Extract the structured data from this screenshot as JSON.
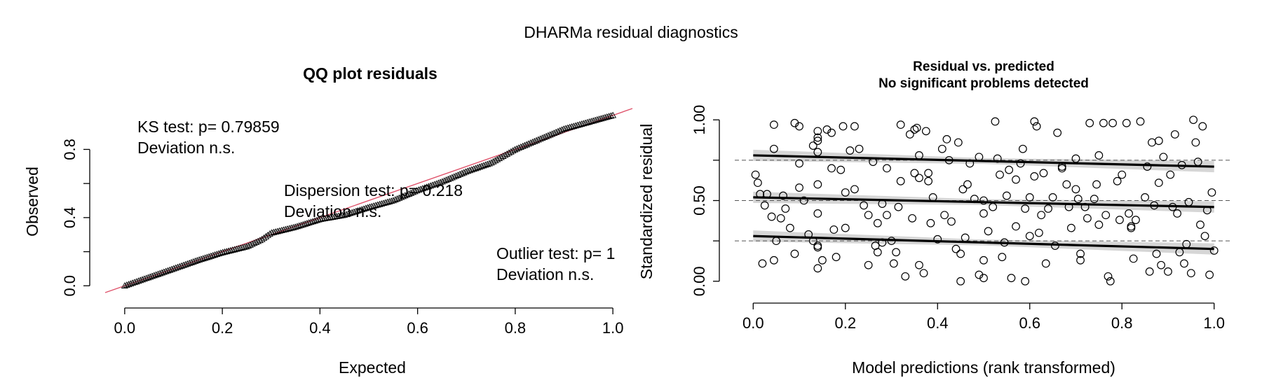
{
  "figure": {
    "title": "DHARMa residual diagnostics"
  },
  "chart_data": [
    {
      "type": "scatter",
      "title": "QQ plot residuals",
      "xlabel": "Expected",
      "ylabel": "Observed",
      "xlim": [
        -0.04,
        1.04
      ],
      "ylim": [
        -0.04,
        1.04
      ],
      "x_ticks": [
        0.0,
        0.2,
        0.4,
        0.6,
        0.8,
        1.0
      ],
      "x_tick_labels": [
        "0.0",
        "0.2",
        "0.4",
        "0.6",
        "0.8",
        "1.0"
      ],
      "y_ticks": [
        0.0,
        0.4,
        0.8
      ],
      "y_tick_labels": [
        "0.0",
        "0.4",
        "0.8"
      ],
      "y_minor_ticks": [
        0.2,
        0.6
      ],
      "grid": false,
      "reference_line": {
        "from": [
          -0.04,
          -0.04
        ],
        "to": [
          1.04,
          1.04
        ],
        "color": "#DF536B"
      },
      "marker": "triangle",
      "qq_curve": {
        "n_points": 250,
        "x": [
          0.0,
          0.05,
          0.1,
          0.15,
          0.2,
          0.25,
          0.28,
          0.3,
          0.35,
          0.4,
          0.45,
          0.5,
          0.55,
          0.6,
          0.65,
          0.7,
          0.75,
          0.8,
          0.85,
          0.9,
          0.95,
          1.0
        ],
        "y": [
          0.0,
          0.05,
          0.1,
          0.15,
          0.195,
          0.23,
          0.27,
          0.31,
          0.345,
          0.39,
          0.415,
          0.46,
          0.5,
          0.56,
          0.61,
          0.67,
          0.72,
          0.8,
          0.86,
          0.92,
          0.96,
          1.0
        ]
      },
      "annotations": [
        {
          "lines": [
            "KS test: p= 0.79859",
            "Deviation  n.s."
          ]
        },
        {
          "lines": [
            "Dispersion test: p= 0.218",
            "Deviation  n.s."
          ]
        },
        {
          "lines": [
            "Outlier test: p= 1",
            "Deviation  n.s."
          ]
        }
      ]
    },
    {
      "type": "scatter",
      "title": "Residual vs. predicted",
      "subtitle": "No significant problems detected",
      "xlabel": "Model predictions (rank transformed)",
      "ylabel": "Standardized residual",
      "xlim": [
        -0.04,
        1.04
      ],
      "ylim": [
        -0.04,
        1.04
      ],
      "x_ticks": [
        0.0,
        0.2,
        0.4,
        0.6,
        0.8,
        1.0
      ],
      "x_tick_labels": [
        "0.0",
        "0.2",
        "0.4",
        "0.6",
        "0.8",
        "1.0"
      ],
      "y_ticks": [
        0.0,
        0.5,
        1.0
      ],
      "y_tick_labels": [
        "0.00",
        "0.50",
        "1.00"
      ],
      "y_minor_ticks": [
        0.25,
        0.75
      ],
      "reference_lines": [
        0.25,
        0.5,
        0.75
      ],
      "marker": "open-circle",
      "quantile_fits": [
        {
          "quantile": 0.25,
          "y_at_0": 0.28,
          "y_at_1": 0.2
        },
        {
          "quantile": 0.5,
          "y_at_0": 0.52,
          "y_at_1": 0.46
        },
        {
          "quantile": 0.75,
          "y_at_0": 0.78,
          "y_at_1": 0.71
        }
      ],
      "points": [
        [
          0.005,
          0.66
        ],
        [
          0.01,
          0.61
        ],
        [
          0.015,
          0.54
        ],
        [
          0.02,
          0.11
        ],
        [
          0.025,
          0.47
        ],
        [
          0.03,
          0.54
        ],
        [
          0.04,
          0.4
        ],
        [
          0.045,
          0.97
        ],
        [
          0.045,
          0.82
        ],
        [
          0.045,
          0.13
        ],
        [
          0.05,
          0.25
        ],
        [
          0.06,
          0.39
        ],
        [
          0.065,
          0.53
        ],
        [
          0.07,
          0.45
        ],
        [
          0.08,
          0.33
        ],
        [
          0.09,
          0.17
        ],
        [
          0.09,
          0.98
        ],
        [
          0.1,
          0.96
        ],
        [
          0.1,
          0.73
        ],
        [
          0.1,
          0.58
        ],
        [
          0.11,
          0.5
        ],
        [
          0.12,
          0.29
        ],
        [
          0.13,
          0.84
        ],
        [
          0.13,
          0.25
        ],
        [
          0.14,
          0.93
        ],
        [
          0.14,
          0.89
        ],
        [
          0.14,
          0.87
        ],
        [
          0.14,
          0.8
        ],
        [
          0.14,
          0.6
        ],
        [
          0.14,
          0.42
        ],
        [
          0.14,
          0.22
        ],
        [
          0.14,
          0.21
        ],
        [
          0.14,
          0.08
        ],
        [
          0.15,
          0.13
        ],
        [
          0.16,
          0.94
        ],
        [
          0.17,
          0.92
        ],
        [
          0.17,
          0.7
        ],
        [
          0.175,
          0.32
        ],
        [
          0.18,
          0.15
        ],
        [
          0.19,
          0.69
        ],
        [
          0.195,
          0.96
        ],
        [
          0.2,
          0.55
        ],
        [
          0.2,
          0.33
        ],
        [
          0.21,
          0.81
        ],
        [
          0.22,
          0.96
        ],
        [
          0.22,
          0.57
        ],
        [
          0.23,
          0.82
        ],
        [
          0.24,
          0.47
        ],
        [
          0.25,
          0.41
        ],
        [
          0.25,
          0.1
        ],
        [
          0.26,
          0.74
        ],
        [
          0.265,
          0.22
        ],
        [
          0.27,
          0.36
        ],
        [
          0.27,
          0.18
        ],
        [
          0.28,
          0.48
        ],
        [
          0.28,
          0.24
        ],
        [
          0.29,
          0.41
        ],
        [
          0.29,
          0.7
        ],
        [
          0.3,
          0.25
        ],
        [
          0.305,
          0.11
        ],
        [
          0.31,
          0.18
        ],
        [
          0.315,
          0.46
        ],
        [
          0.32,
          0.97
        ],
        [
          0.32,
          0.62
        ],
        [
          0.33,
          0.03
        ],
        [
          0.34,
          0.91
        ],
        [
          0.345,
          0.39
        ],
        [
          0.35,
          0.94
        ],
        [
          0.35,
          0.67
        ],
        [
          0.355,
          0.95
        ],
        [
          0.36,
          0.78
        ],
        [
          0.36,
          0.64
        ],
        [
          0.36,
          0.1
        ],
        [
          0.37,
          0.05
        ],
        [
          0.375,
          0.93
        ],
        [
          0.38,
          0.67
        ],
        [
          0.38,
          0.62
        ],
        [
          0.385,
          0.36
        ],
        [
          0.39,
          0.52
        ],
        [
          0.4,
          0.26
        ],
        [
          0.41,
          0.82
        ],
        [
          0.415,
          0.41
        ],
        [
          0.42,
          0.88
        ],
        [
          0.425,
          0.75
        ],
        [
          0.43,
          0.37
        ],
        [
          0.44,
          0.2
        ],
        [
          0.445,
          0.86
        ],
        [
          0.45,
          0.17
        ],
        [
          0.45,
          0.0
        ],
        [
          0.455,
          0.57
        ],
        [
          0.46,
          0.27
        ],
        [
          0.465,
          0.6
        ],
        [
          0.47,
          0.73
        ],
        [
          0.48,
          0.51
        ],
        [
          0.49,
          0.77
        ],
        [
          0.49,
          0.04
        ],
        [
          0.5,
          0.5
        ],
        [
          0.5,
          0.42
        ],
        [
          0.5,
          0.13
        ],
        [
          0.5,
          0.02
        ],
        [
          0.51,
          0.31
        ],
        [
          0.52,
          0.46
        ],
        [
          0.525,
          0.99
        ],
        [
          0.53,
          0.76
        ],
        [
          0.535,
          0.66
        ],
        [
          0.54,
          0.15
        ],
        [
          0.545,
          0.24
        ],
        [
          0.55,
          0.53
        ],
        [
          0.555,
          0.69
        ],
        [
          0.56,
          0.02
        ],
        [
          0.57,
          0.63
        ],
        [
          0.57,
          0.34
        ],
        [
          0.58,
          0.73
        ],
        [
          0.585,
          0.82
        ],
        [
          0.59,
          0.45
        ],
        [
          0.59,
          0.0
        ],
        [
          0.6,
          0.52
        ],
        [
          0.6,
          0.28
        ],
        [
          0.61,
          0.99
        ],
        [
          0.61,
          0.65
        ],
        [
          0.615,
          0.96
        ],
        [
          0.62,
          0.3
        ],
        [
          0.625,
          0.41
        ],
        [
          0.63,
          0.67
        ],
        [
          0.635,
          0.11
        ],
        [
          0.64,
          0.45
        ],
        [
          0.65,
          0.52
        ],
        [
          0.655,
          0.22
        ],
        [
          0.66,
          0.92
        ],
        [
          0.67,
          0.71
        ],
        [
          0.67,
          0.7
        ],
        [
          0.68,
          0.6
        ],
        [
          0.685,
          0.46
        ],
        [
          0.69,
          0.33
        ],
        [
          0.7,
          0.76
        ],
        [
          0.7,
          0.57
        ],
        [
          0.705,
          0.51
        ],
        [
          0.71,
          0.17
        ],
        [
          0.71,
          0.13
        ],
        [
          0.72,
          0.46
        ],
        [
          0.725,
          0.39
        ],
        [
          0.73,
          0.98
        ],
        [
          0.74,
          0.51
        ],
        [
          0.745,
          0.6
        ],
        [
          0.75,
          0.35
        ],
        [
          0.75,
          0.78
        ],
        [
          0.76,
          0.98
        ],
        [
          0.765,
          0.41
        ],
        [
          0.77,
          0.03
        ],
        [
          0.775,
          0.0
        ],
        [
          0.78,
          0.98
        ],
        [
          0.79,
          0.62
        ],
        [
          0.795,
          0.38
        ],
        [
          0.8,
          0.66
        ],
        [
          0.81,
          0.98
        ],
        [
          0.815,
          0.42
        ],
        [
          0.82,
          0.34
        ],
        [
          0.82,
          0.33
        ],
        [
          0.825,
          0.14
        ],
        [
          0.83,
          0.38
        ],
        [
          0.84,
          0.99
        ],
        [
          0.85,
          0.52
        ],
        [
          0.855,
          0.71
        ],
        [
          0.86,
          0.06
        ],
        [
          0.865,
          0.86
        ],
        [
          0.87,
          0.47
        ],
        [
          0.875,
          0.17
        ],
        [
          0.88,
          0.87
        ],
        [
          0.88,
          0.61
        ],
        [
          0.885,
          0.1
        ],
        [
          0.89,
          0.77
        ],
        [
          0.9,
          0.06
        ],
        [
          0.905,
          0.66
        ],
        [
          0.91,
          0.46
        ],
        [
          0.915,
          0.91
        ],
        [
          0.92,
          0.42
        ],
        [
          0.925,
          0.18
        ],
        [
          0.93,
          0.72
        ],
        [
          0.935,
          0.11
        ],
        [
          0.94,
          0.23
        ],
        [
          0.945,
          0.49
        ],
        [
          0.95,
          0.05
        ],
        [
          0.955,
          1.0
        ],
        [
          0.96,
          0.86
        ],
        [
          0.965,
          0.74
        ],
        [
          0.97,
          0.35
        ],
        [
          0.975,
          0.96
        ],
        [
          0.98,
          0.28
        ],
        [
          0.985,
          0.44
        ],
        [
          0.99,
          0.04
        ],
        [
          0.995,
          0.55
        ],
        [
          1.0,
          0.19
        ]
      ]
    }
  ]
}
